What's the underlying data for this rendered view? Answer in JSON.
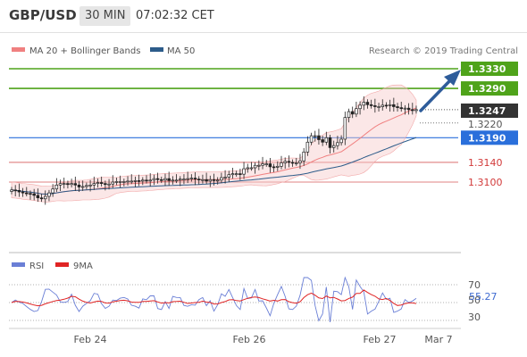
{
  "header": {
    "pair": "GBP/USD",
    "timeframe": "30 MIN",
    "time": "07:02:32 CET"
  },
  "chart_data": [
    {
      "type": "candlestick",
      "title": "GBP/USD",
      "attribution": "Research © 2019 Trading Central",
      "legend": [
        {
          "name": "MA 20 + Bollinger Bands",
          "color": "#f08080"
        },
        {
          "name": "MA 50",
          "color": "#2d5c8a"
        }
      ],
      "x_ticks": [
        "Feb 24",
        "Feb 26",
        "Feb 27",
        "Mar 7"
      ],
      "ylim": [
        1.304,
        1.338
      ],
      "price_series": [
        1.3084,
        1.3083,
        1.308,
        1.3078,
        1.3077,
        1.3076,
        1.3073,
        1.3068,
        1.3066,
        1.3071,
        1.3078,
        1.3086,
        1.3094,
        1.3097,
        1.3097,
        1.3095,
        1.3097,
        1.3094,
        1.309,
        1.3091,
        1.3093,
        1.3094,
        1.3097,
        1.3099,
        1.3097,
        1.3095,
        1.3096,
        1.31,
        1.3101,
        1.3101,
        1.3101,
        1.3102,
        1.3102,
        1.3103,
        1.3102,
        1.3104,
        1.3103,
        1.3104,
        1.3107,
        1.3105,
        1.3104,
        1.3107,
        1.3103,
        1.3104,
        1.3104,
        1.3106,
        1.3106,
        1.3107,
        1.3108,
        1.3106,
        1.3105,
        1.3105,
        1.3102,
        1.3105,
        1.3103,
        1.3104,
        1.3109,
        1.311,
        1.3115,
        1.3117,
        1.3117,
        1.3116,
        1.3127,
        1.3129,
        1.3129,
        1.3134,
        1.3134,
        1.3137,
        1.3137,
        1.3131,
        1.313,
        1.3132,
        1.3139,
        1.3142,
        1.314,
        1.3139,
        1.3139,
        1.3143,
        1.3161,
        1.3181,
        1.3194,
        1.3194,
        1.3186,
        1.3181,
        1.319,
        1.317,
        1.3174,
        1.318,
        1.3187,
        1.3231,
        1.3243,
        1.3238,
        1.3249,
        1.3256,
        1.3262,
        1.3257,
        1.3255,
        1.3253,
        1.3253,
        1.3256,
        1.3255,
        1.3257,
        1.3253,
        1.3251,
        1.3249,
        1.325,
        1.3247,
        1.3245,
        1.3247
      ],
      "levels": [
        {
          "label": "1.3330",
          "value": 1.333,
          "color": "#4fa31a"
        },
        {
          "label": "1.3290",
          "value": 1.329,
          "color": "#4fa31a"
        },
        {
          "label": "1.3247",
          "value": 1.3247,
          "color": "#333333"
        },
        {
          "label": "1.3220",
          "value": 1.322,
          "color": "#ffffff"
        },
        {
          "label": "1.3190",
          "value": 1.319,
          "color": "#2a6fdb"
        },
        {
          "label": "1.3140",
          "value": 1.314,
          "color": "#d23a3a"
        },
        {
          "label": "1.3100",
          "value": 1.31,
          "color": "#d23a3a"
        }
      ]
    },
    {
      "type": "line",
      "title": "RSI",
      "legend": [
        {
          "name": "RSI",
          "color": "#6a7fd6"
        },
        {
          "name": "9MA",
          "color": "#e02424"
        }
      ],
      "y_ticks": [
        "70",
        "50",
        "30"
      ],
      "current_label": "55.27",
      "ylim": [
        20,
        80
      ]
    }
  ]
}
